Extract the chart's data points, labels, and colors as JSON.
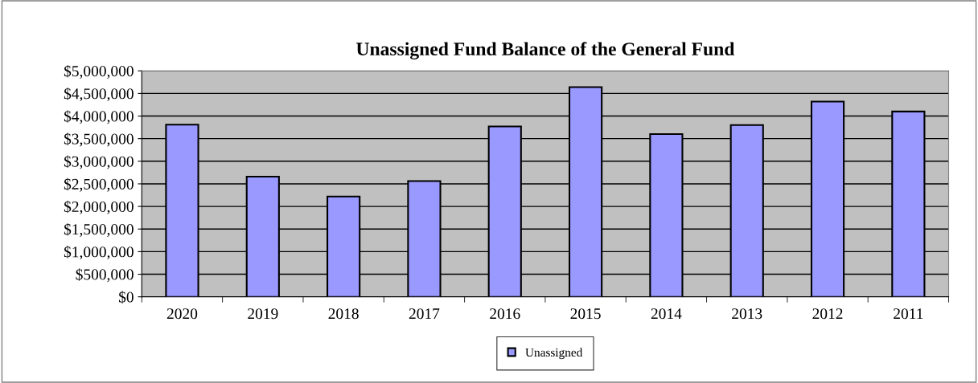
{
  "chart_data": {
    "type": "bar",
    "title": "Unassigned Fund Balance of the General Fund",
    "categories": [
      "2020",
      "2019",
      "2018",
      "2017",
      "2016",
      "2015",
      "2014",
      "2013",
      "2012",
      "2011"
    ],
    "series": [
      {
        "name": "Unassigned",
        "color": "#9999ff",
        "values": [
          3810000,
          2660000,
          2220000,
          2560000,
          3770000,
          4640000,
          3600000,
          3800000,
          4320000,
          4100000
        ]
      }
    ],
    "ylim": [
      0,
      5000000
    ],
    "yticks": [
      {
        "value": 0,
        "label": "$0"
      },
      {
        "value": 500000,
        "label": "$500,000"
      },
      {
        "value": 1000000,
        "label": "$1,000,000"
      },
      {
        "value": 1500000,
        "label": "$1,500,000"
      },
      {
        "value": 2000000,
        "label": "$2,000,000"
      },
      {
        "value": 2500000,
        "label": "$2,500,000"
      },
      {
        "value": 3000000,
        "label": "$3,000,000"
      },
      {
        "value": 3500000,
        "label": "$3,500,000"
      },
      {
        "value": 4000000,
        "label": "$4,000,000"
      },
      {
        "value": 4500000,
        "label": "$4,500,000"
      },
      {
        "value": 5000000,
        "label": "$5,000,000"
      }
    ],
    "grid": "y",
    "legend": "bottom"
  }
}
